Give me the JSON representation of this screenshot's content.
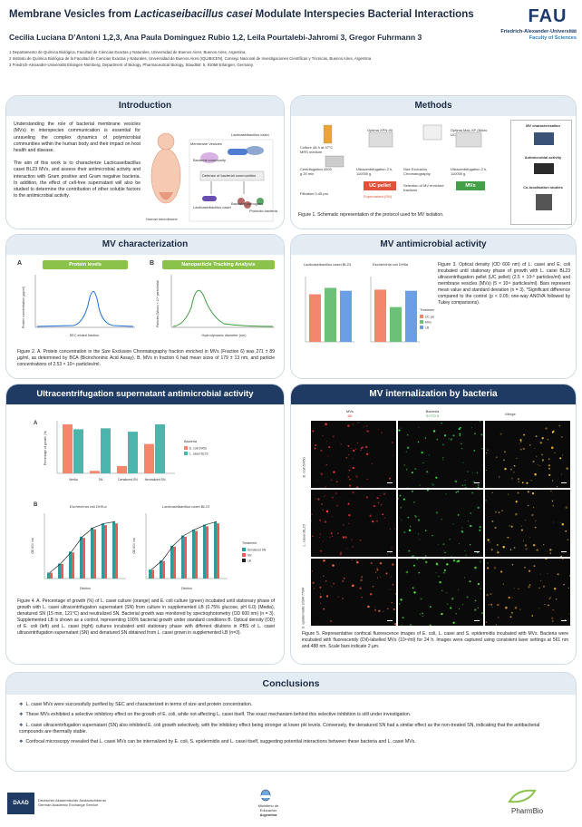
{
  "header": {
    "title_pre": "Membrane Vesicles from ",
    "title_italic": "Lacticaseibacillus casei",
    "title_post": " Modulate Interspecies Bacterial Interactions",
    "authors": "Cecilia Luciana D’Antoni 1,2,3, Ana Paula Dominguez Rubio 1,2, Leila Pourtalebi-Jahromi 3, Gregor Fuhrmann 3",
    "affiliations": [
      "1 Departamento de Química Biológica, Facultad de Ciencias Exactas y Naturales, Universidad de Buenos Aires, Buenos Aires, Argentina.",
      "2 Instituto de Química Biológica de la Facultad de Ciencias Exactas y Naturales, Universidad de Buenos Aires (IQUIBICEN), Consejo Nacional de Investigaciones Científicas y Técnicas, Buenos Aires, Argentina",
      "3 Friedrich-Alexander-Universität Erlangen-Nürnberg, Department of Biology, Pharmaceutical Biology, Staudtstr. 5, 91058 Erlangen, Germany."
    ],
    "fau_logo": "FAU",
    "fau_sub1": "Friedrich-Alexander-Universität",
    "fau_sub2": "Faculty of Sciences"
  },
  "intro": {
    "title": "Introduction",
    "p1": "Understanding the role of bacterial membrane vesicles (MVs) in interspecies communication is essential for unraveling the complex dynamics of polymicrobial communities within the human body and their impact on host health and disease.",
    "p2": "The aim of this work is to characterize Lacticaseibacillus casei BL23 MVs, and assess their antimicrobial activity and interaction with Gram positive and Gram negative bacteria. In addition, the effect of cell-free supernatant will also be studied to determine the contribution of other soluble factors to the antimicrobial activity.",
    "fig_labels": [
      "Lacticaseibacillus casei",
      "Membrane Vesicles",
      "Human microbiome",
      "Bacterial community",
      "Defense of bacterial communities",
      "Lacticaseibacillus casei",
      "Bacterial pathogens",
      "Probiotic bacteria"
    ]
  },
  "methods": {
    "title": "Methods",
    "steps": [
      "Culture 48 h at 37°C MRS medium",
      "Centrifugation 4500 g 20 min",
      "Filtration 0.45 µm",
      "Optima XPN-90",
      "Ultracentrifugation 2 h, 110000 g",
      "UC pellet",
      "Supernatant (SN)",
      "Size Exclusion Chromatography",
      "Selection of MV enriched fractions",
      "Optima Max-XP (Micro UC)",
      "Ultracentrifugation 2 h, 110000 g",
      "MVs"
    ],
    "right_labels": [
      "MV characterization",
      "Antimicrobial activity",
      "Co-localisation studies"
    ],
    "caption": "Figure 1. Schematic representation of the protocol used for MV isolation."
  },
  "mvchar": {
    "title": "MV characterization",
    "labelA": "A",
    "labelB": "B",
    "pillA": "Protein levels",
    "pillB": "Nanoparticle Tracking Analysis",
    "yA": "Protein concentration (µg/ml)",
    "xA": "SEC eluted fraction",
    "yB": "Particles (Mean) × 10⁹ particles/ml",
    "xB": "Hydrodynamic diameter (nm)",
    "caption": "Figure 2. A. Protein concentration in the Size Exclusion Chromatography fraction enriched in MVs (Fraction 6) was 271 ± 89 µg/ml, as determined by BCA (Bicinchoninic Acid Assay). B. MVs in fraction 6 had mean sizes of 179 ± 13 nm, and particle concentrations of 2.53 × 10¹¹ particles/ml."
  },
  "mvanti": {
    "title": "MV antimicrobial activity",
    "chart1": "Lacticaseibacillus casei BL23",
    "chart2": "Escherichia coli DH5α",
    "legend_title": "Treatment",
    "legend": [
      "UC pellet",
      "MVs",
      "LB"
    ],
    "caption": "Figure 3. Optical density (OD 600 nm) of L. casei and E. coli incubated until stationary phase of growth with L. casei BL23 ultracentrifugation pellet (UC pellet) (2.5 × 10¹⁰ particles/ml) and membrane vesicles (MVs) (5 × 10¹¹ particles/ml). Bars represent mean value and standard deviation (n = 3). *Significant difference compared to the control (p < 0.05; one-way ANOVA followed by Tukey comparisons)."
  },
  "ucsn": {
    "title": "Ultracentrifugation supernatant antimicrobial activity",
    "labelA": "A",
    "labelB": "B",
    "ylabelA": "Percentage of growth (%)",
    "legend_title": "Bacteria",
    "legend": [
      "E. coli DH5α",
      "L. casei BL23"
    ],
    "xcats": [
      "Media",
      "SN",
      "Denatured SN",
      "Neutralized SN"
    ],
    "lineTitle1": "Escherichia coli DH5-α",
    "lineTitle2": "Lacticaseibacillus casei BL23",
    "ylabelB": "OD 600 nm",
    "xlabelB": "Dilution",
    "legendB_title": "Treatment",
    "legendB": [
      "Denatured SN",
      "SN",
      "LB"
    ],
    "caption": "Figure 4. A. Percentage of growth (%) of L. casei culture (orange) and E. coli culture (green) incubated until stationary phase of growth with L. casei ultracentrifugation supernatant (SN) from culture in supplemented LB (0.75% glucose, pH 6.0) (Media), denatured SN (15 min, 121°C) and neutralized SN. Bacterial growth was monitored by spectrophotometry (OD 600 nm) (n = 3). Supplemented LB is shown as a control, representing 100% bacterial growth under standard conditions B. Optical density (OD) of E. coli (left) and L. casei (right) cultures incubated until stationary phase with different dilutions in PBS of L. casei ultracentrifugation supernatant (SN) and denatured SN obtained from L. casei grown in supplemented LB (n=3)."
  },
  "internal": {
    "title": "MV internalization by bacteria",
    "col1": "MVs",
    "col1b": "DiI",
    "col2": "Bacteria",
    "col2b": "SYTO 9",
    "col3": "Merge",
    "rows": [
      "E. coli DH5α",
      "L. casei BL23",
      "S. epidermidis DSM 7784"
    ],
    "caption": "Figure 5. Representative confocal fluorescence images of E. coli, L. casei and S. epidermidis incubated with MVs. Bacteria were incubated with fluorescently (DiI)-labelled MVs (10¹¹/ml) for 24 h. Images were captured using consistent laser settings at 561 nm and 488 nm. Scale bars indicate 2 µm."
  },
  "conclusions": {
    "title": "Conclusions",
    "items": [
      "L. casei MVs were successfully purified by SEC and characterized in terms of size and protein concentration.",
      "These MVs exhibited a selective inhibitory effect on the growth of E. coli, while not affecting L. casei itself. The exact mechanism behind this selective inhibition is still under investigation.",
      "L. casei ultracentrifugation supernatant (SN) also inhibited E. coli growth selectively, with the inhibitory effect being stronger at lower pH levels. Conversely, the denatured SN had a similar effect as the non-treated SN, indicating that the antibacterial compounds are thermally stable.",
      "Confocal microscopy revealed that L. casei MVs can be internalized by E. coli, S. epidermidis and L. casei itself, suggesting potential interactions between these bacteria and L. casei MVs."
    ]
  },
  "footer": {
    "daad": "DAAD",
    "daad_text1": "Deutscher Akademischer Austauschdienst",
    "daad_text2": "German Academic Exchange Service",
    "ministerio1": "Ministerio de Educación",
    "ministerio2": "Argentina",
    "pharmbio": "PharmBio"
  },
  "colors": {
    "navy": "#1f3b63",
    "orange": "#f4876b",
    "teal": "#4db6ac",
    "green": "#8bc34a",
    "blue": "#1c6ed6"
  }
}
